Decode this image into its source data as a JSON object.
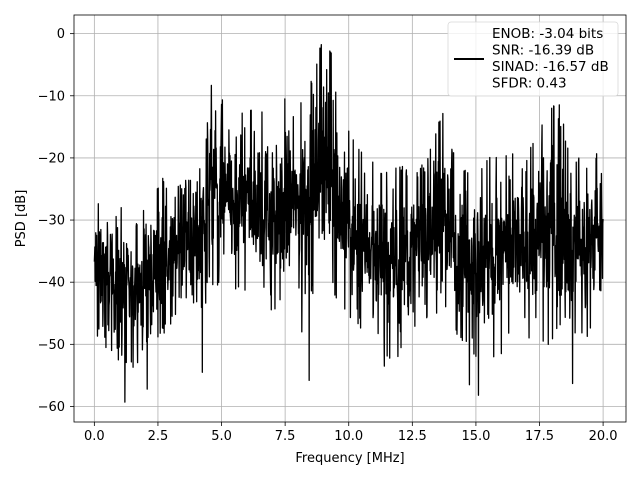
{
  "chart_data": {
    "type": "line",
    "title": "",
    "xlabel": "Frequency [MHz]",
    "ylabel": "PSD [dB]",
    "xlim": [
      -0.8,
      20.9
    ],
    "ylim": [
      -62.5,
      3
    ],
    "xticks": [
      0.0,
      2.5,
      5.0,
      7.5,
      10.0,
      12.5,
      15.0,
      17.5,
      20.0
    ],
    "xtick_labels": [
      "0.0",
      "2.5",
      "5.0",
      "7.5",
      "10.0",
      "12.5",
      "15.0",
      "17.5",
      "20.0"
    ],
    "yticks": [
      0,
      -10,
      -20,
      -30,
      -40,
      -50,
      -60
    ],
    "ytick_labels": [
      "0",
      "−10",
      "−20",
      "−30",
      "−40",
      "−50",
      "−60"
    ],
    "grid": true,
    "legend_position": "top-right",
    "series": [
      {
        "name": "ENOB: -3.04 bits\nSNR: -16.39 dB\nSINAD: -16.57 dB\nSFDR: 0.43",
        "color": "#000000",
        "envelope_x": [
          0.0,
          0.3,
          0.6,
          1.0,
          1.5,
          2.0,
          2.5,
          3.0,
          3.5,
          3.8,
          4.0,
          4.3,
          4.5,
          4.8,
          5.0,
          5.5,
          6.0,
          6.5,
          7.0,
          7.5,
          8.0,
          8.5,
          8.8,
          9.0,
          9.3,
          9.6,
          10.0,
          10.5,
          11.0,
          11.5,
          12.0,
          12.5,
          13.0,
          13.5,
          13.7,
          14.0,
          14.5,
          15.0,
          15.5,
          16.0,
          16.5,
          17.0,
          17.5,
          17.9,
          18.3,
          18.6,
          19.0,
          19.5,
          20.0
        ],
        "envelope_top": [
          -25.0,
          -28.0,
          -30.0,
          -27.0,
          -31.0,
          -28.0,
          -24.0,
          -22.0,
          -24.0,
          -22.0,
          -18.0,
          -13.0,
          -6.0,
          -12.0,
          -10.0,
          -13.0,
          -12.0,
          -11.0,
          -13.0,
          -10.0,
          -12.0,
          -8.0,
          -3.0,
          -0.2,
          -2.0,
          -12.0,
          -15.0,
          -19.0,
          -20.0,
          -22.0,
          -21.0,
          -22.0,
          -20.0,
          -14.0,
          -12.0,
          -18.0,
          -22.0,
          -21.0,
          -20.0,
          -19.0,
          -18.0,
          -19.0,
          -15.0,
          -12.0,
          -11.0,
          -18.0,
          -20.0,
          -19.0,
          -19.0
        ],
        "envelope_bottom": [
          -50.0,
          -48.0,
          -51.0,
          -52.0,
          -55.0,
          -50.0,
          -50.0,
          -47.0,
          -45.0,
          -43.0,
          -44.0,
          -46.0,
          -40.0,
          -41.0,
          -42.0,
          -43.0,
          -42.0,
          -44.0,
          -46.0,
          -44.0,
          -42.0,
          -43.0,
          -40.0,
          -38.0,
          -40.0,
          -44.0,
          -46.0,
          -48.0,
          -47.0,
          -52.0,
          -53.0,
          -48.0,
          -46.0,
          -47.0,
          -45.0,
          -47.0,
          -50.0,
          -52.0,
          -55.0,
          -50.0,
          -50.0,
          -49.0,
          -52.0,
          -50.0,
          -48.0,
          -47.0,
          -50.0,
          -49.0,
          -40.0
        ],
        "spikes": [
          [
            1.2,
            -59.3
          ],
          [
            2.08,
            -57.2
          ],
          [
            4.25,
            -54.5
          ],
          [
            8.45,
            -55.8
          ],
          [
            11.4,
            -53.5
          ],
          [
            14.75,
            -56.5
          ],
          [
            15.1,
            -58.2
          ],
          [
            18.8,
            -56.3
          ],
          [
            0.45,
            -50.5
          ],
          [
            0.95,
            -52.5
          ],
          [
            16.0,
            -51.5
          ],
          [
            8.15,
            -48.0
          ]
        ]
      }
    ]
  }
}
